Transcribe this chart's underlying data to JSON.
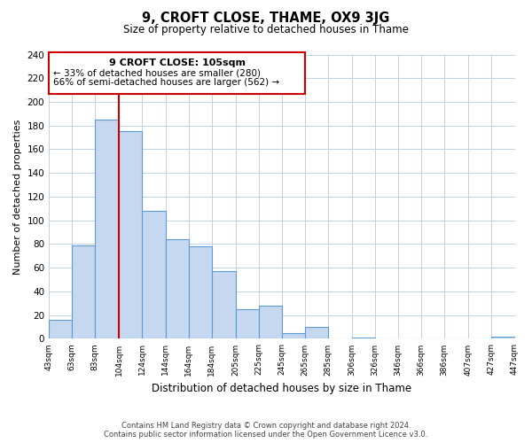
{
  "title": "9, CROFT CLOSE, THAME, OX9 3JG",
  "subtitle": "Size of property relative to detached houses in Thame",
  "xlabel": "Distribution of detached houses by size in Thame",
  "ylabel": "Number of detached properties",
  "bar_edges": [
    43,
    63,
    83,
    104,
    124,
    144,
    164,
    184,
    205,
    225,
    245,
    265,
    285,
    306,
    326,
    346,
    366,
    386,
    407,
    427,
    447
  ],
  "bar_heights": [
    16,
    79,
    185,
    175,
    108,
    84,
    78,
    57,
    25,
    28,
    5,
    10,
    0,
    1,
    0,
    0,
    0,
    0,
    0,
    2
  ],
  "tick_labels": [
    "43sqm",
    "63sqm",
    "83sqm",
    "104sqm",
    "124sqm",
    "144sqm",
    "164sqm",
    "184sqm",
    "205sqm",
    "225sqm",
    "245sqm",
    "265sqm",
    "285sqm",
    "306sqm",
    "326sqm",
    "346sqm",
    "366sqm",
    "386sqm",
    "407sqm",
    "427sqm",
    "447sqm"
  ],
  "bar_color": "#c5d8f0",
  "bar_edge_color": "#5b9bd5",
  "vline_x": 104,
  "vline_color": "#cc0000",
  "annotation_title": "9 CROFT CLOSE: 105sqm",
  "annotation_line1": "← 33% of detached houses are smaller (280)",
  "annotation_line2": "66% of semi-detached houses are larger (562) →",
  "annotation_box_edge": "#cc0000",
  "ylim": [
    0,
    240
  ],
  "yticks": [
    0,
    20,
    40,
    60,
    80,
    100,
    120,
    140,
    160,
    180,
    200,
    220,
    240
  ],
  "footer_line1": "Contains HM Land Registry data © Crown copyright and database right 2024.",
  "footer_line2": "Contains public sector information licensed under the Open Government Licence v3.0.",
  "background_color": "#ffffff",
  "grid_color": "#c0d0e8",
  "figsize": [
    6.0,
    5.0
  ],
  "dpi": 100
}
